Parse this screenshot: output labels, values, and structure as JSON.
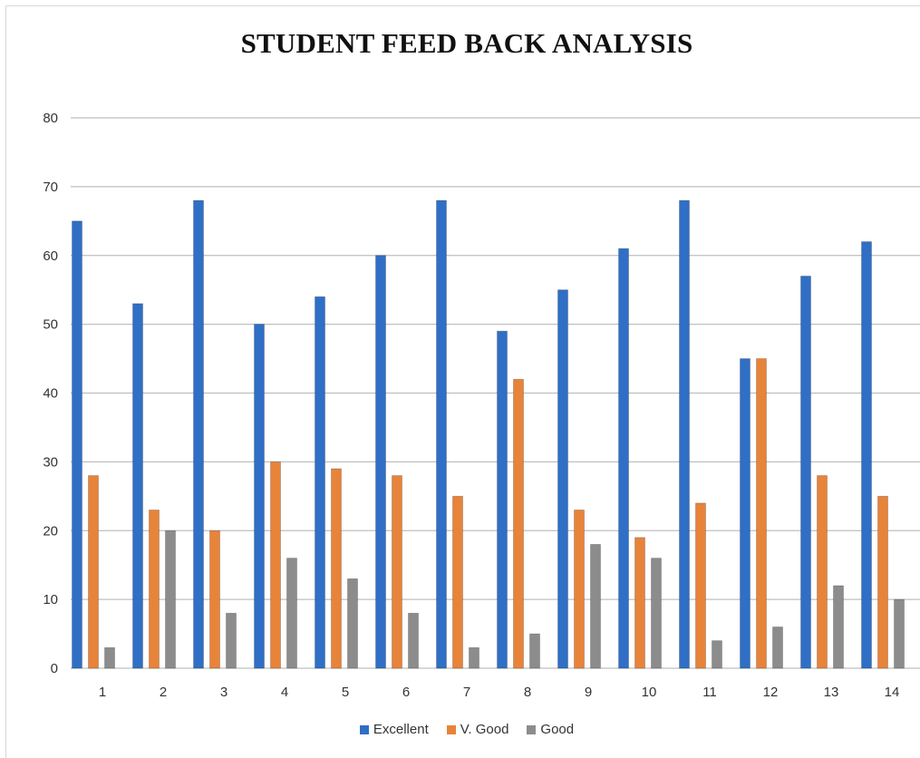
{
  "chart_data": {
    "type": "bar",
    "title": "STUDENT FEED BACK ANALYSIS",
    "categories": [
      "1",
      "2",
      "3",
      "4",
      "5",
      "6",
      "7",
      "8",
      "9",
      "10",
      "11",
      "12",
      "13",
      "14"
    ],
    "series": [
      {
        "name": "Excellent",
        "color": "#2f6fc6",
        "values": [
          65,
          53,
          68,
          50,
          54,
          60,
          68,
          49,
          55,
          61,
          68,
          45,
          57,
          62
        ]
      },
      {
        "name": "V. Good",
        "color": "#e8833a",
        "values": [
          28,
          23,
          20,
          30,
          29,
          28,
          25,
          42,
          23,
          19,
          24,
          45,
          28,
          25
        ]
      },
      {
        "name": "Good",
        "color": "#8c8c8c",
        "values": [
          3,
          20,
          8,
          16,
          13,
          8,
          3,
          5,
          18,
          16,
          4,
          6,
          12,
          10
        ]
      }
    ],
    "ylim": [
      0,
      80
    ],
    "yticks": [
      "0",
      "10",
      "20",
      "30",
      "40",
      "50",
      "60",
      "70",
      "80"
    ],
    "grid": true,
    "legend": "bottom"
  }
}
